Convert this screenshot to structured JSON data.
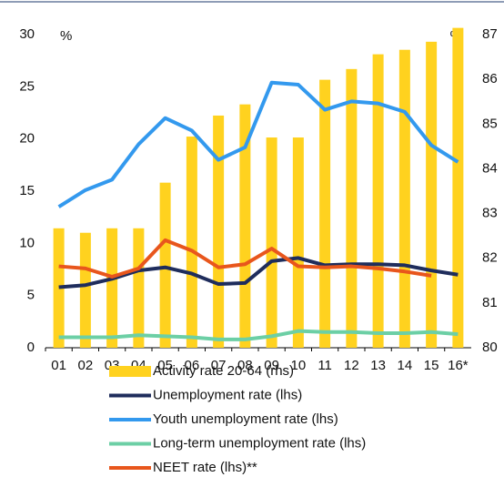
{
  "chart_data": {
    "type": "bar-line",
    "ylabel": "%",
    "y2label": "%",
    "categories": [
      "01",
      "02",
      "03",
      "04",
      "05",
      "06",
      "07",
      "08",
      "09",
      "10",
      "11",
      "12",
      "13",
      "14",
      "15",
      "16*"
    ],
    "ylim": [
      0,
      30
    ],
    "yticks": [
      0,
      5,
      10,
      15,
      20,
      25,
      30
    ],
    "y2lim": [
      80,
      87
    ],
    "y2ticks": [
      80,
      81,
      82,
      83,
      84,
      85,
      86,
      87
    ],
    "series": [
      {
        "name": "Activity rate 20-64 (rhs)",
        "type": "bar",
        "axis": "y2",
        "color": "#ffd21f",
        "values": [
          82.67,
          82.57,
          82.67,
          82.67,
          83.69,
          84.72,
          85.19,
          85.44,
          84.7,
          84.7,
          85.99,
          86.23,
          86.56,
          86.66,
          86.84,
          87.15
        ]
      },
      {
        "name": "Unemployment rate (lhs)",
        "type": "line",
        "color": "#1f2d5c",
        "values": [
          5.8,
          6.0,
          6.6,
          7.4,
          7.7,
          7.1,
          6.1,
          6.2,
          8.3,
          8.6,
          7.9,
          8.0,
          8.0,
          7.9,
          7.4,
          7.0
        ]
      },
      {
        "name": "Youth unemployment rate (lhs)",
        "type": "line",
        "color": "#3399ee",
        "values": [
          13.5,
          15.1,
          16.1,
          19.5,
          22.0,
          20.8,
          18.0,
          19.2,
          25.4,
          25.2,
          22.8,
          23.6,
          23.4,
          22.6,
          19.4,
          17.8
        ]
      },
      {
        "name": "Long-term unemployment rate (lhs)",
        "type": "line",
        "color": "#6ccfa5",
        "values": [
          1.0,
          1.0,
          1.0,
          1.2,
          1.1,
          1.0,
          0.8,
          0.8,
          1.1,
          1.6,
          1.5,
          1.5,
          1.4,
          1.4,
          1.5,
          1.3
        ]
      },
      {
        "name": "NEET rate (lhs)**",
        "type": "line",
        "color": "#e8561c",
        "values": [
          7.8,
          7.6,
          6.8,
          7.6,
          10.3,
          9.3,
          7.7,
          8.0,
          9.5,
          7.8,
          7.7,
          7.8,
          7.6,
          7.3,
          6.9,
          null
        ]
      }
    ]
  }
}
